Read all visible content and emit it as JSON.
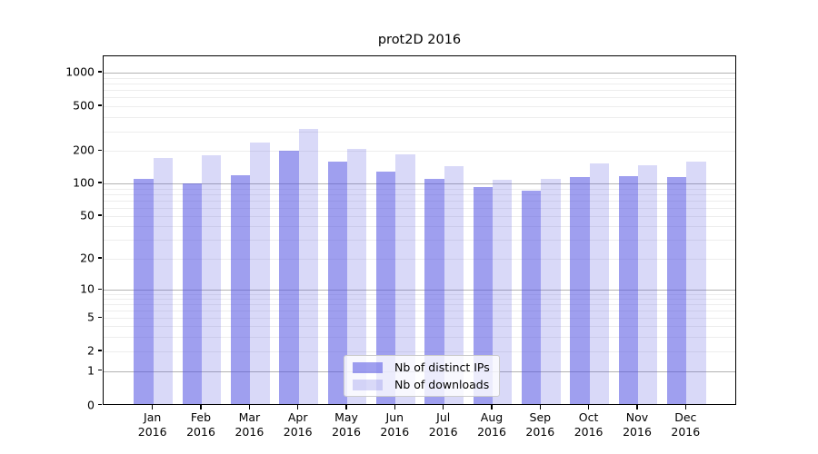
{
  "title": "prot2D 2016",
  "chart_data": {
    "type": "bar",
    "title": "prot2D 2016",
    "categories": [
      "Jan 2016",
      "Feb 2016",
      "Mar 2016",
      "Apr 2016",
      "May 2016",
      "Jun 2016",
      "Jul 2016",
      "Aug 2016",
      "Sep 2016",
      "Oct 2016",
      "Nov 2016",
      "Dec 2016"
    ],
    "series": [
      {
        "name": "Nb of distinct IPs",
        "color": "rgba(80,80,225,0.55)",
        "values": [
          110,
          100,
          119,
          203,
          158,
          128,
          110,
          93,
          85,
          115,
          116,
          114
        ]
      },
      {
        "name": "Nb of downloads",
        "color": "rgba(80,80,225,0.22)",
        "values": [
          173,
          182,
          238,
          315,
          208,
          188,
          145,
          108,
          110,
          153,
          148,
          161
        ]
      }
    ],
    "xlabel": "",
    "ylabel": "",
    "y_scale": "symlog",
    "y_ticks": [
      0,
      1,
      2,
      5,
      10,
      20,
      50,
      100,
      200,
      500,
      1000
    ],
    "ylim": [
      0,
      1400
    ],
    "grid": true,
    "legend_position": "lower center"
  },
  "colors": {
    "grid_major": "#b3b3b3",
    "grid_minor": "#ededed",
    "spine": "#000000",
    "legend_border": "#cccccc",
    "legend_background": "rgba(255,255,255,0.8)",
    "text": "#000000"
  }
}
